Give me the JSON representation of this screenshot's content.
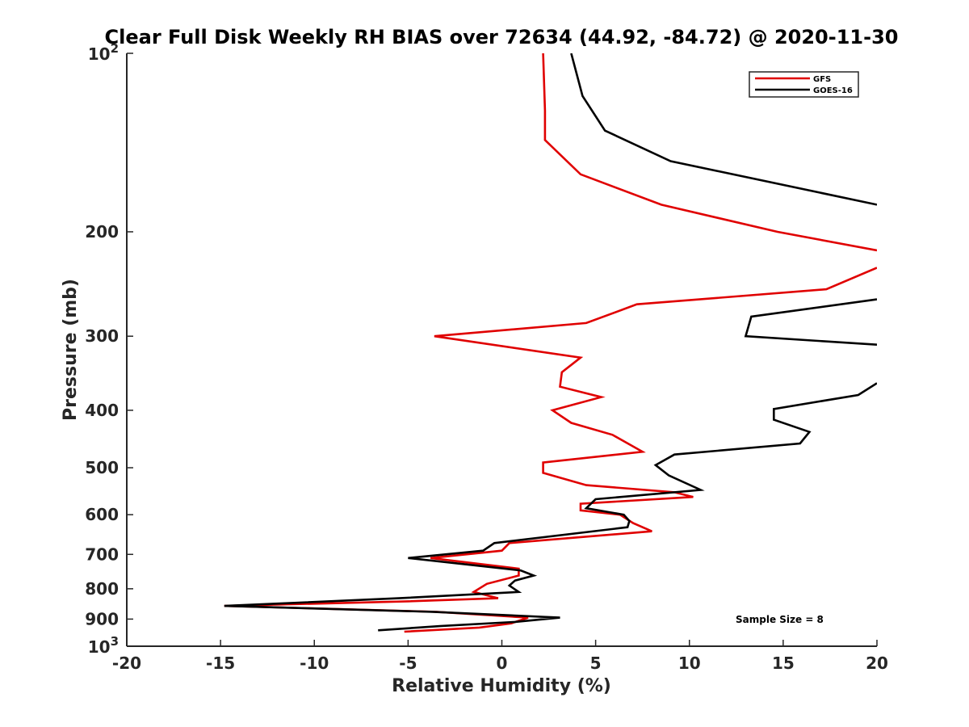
{
  "chart_data": {
    "type": "line",
    "title": "Clear Full Disk Weekly RH BIAS over 72634 (44.92, -84.72) @ 2020-11-30",
    "xlabel": "Relative Humidity (%)",
    "ylabel": "Pressure (mb)",
    "xlim": [
      -20,
      20
    ],
    "ylim": [
      100,
      1000
    ],
    "yscale": "log",
    "y_reversed": true,
    "grid": false,
    "legend_position": "top-right",
    "x_ticks": [
      -20,
      -15,
      -10,
      -5,
      0,
      5,
      10,
      15,
      20
    ],
    "x_tick_labels": [
      "-20",
      "-15",
      "-10",
      "-5",
      "0",
      "5",
      "10",
      "15",
      "20"
    ],
    "y_ticks": [
      200,
      300,
      400,
      500,
      600,
      700,
      800,
      900
    ],
    "y_tick_labels": [
      "200",
      "300",
      "400",
      "500",
      "600",
      "700",
      "800",
      "900"
    ],
    "y_end_ticks": [
      {
        "value": 100,
        "base": "10",
        "exp": "2"
      },
      {
        "value": 1000,
        "base": "10",
        "exp": "3"
      }
    ],
    "series": [
      {
        "name": "GFS",
        "color": "#e00000",
        "points": [
          [
            2.2,
            100
          ],
          [
            2.3,
            125
          ],
          [
            2.3,
            140
          ],
          [
            4.2,
            160
          ],
          [
            8.5,
            180
          ],
          [
            14.7,
            200
          ],
          [
            20,
            215
          ],
          [
            null,
            null
          ],
          [
            20,
            230
          ],
          [
            17.3,
            250
          ],
          [
            7.2,
            265
          ],
          [
            4.5,
            285
          ],
          [
            -3.6,
            300
          ],
          [
            4.2,
            326
          ],
          [
            3.2,
            345
          ],
          [
            3.1,
            365
          ],
          [
            5.3,
            380
          ],
          [
            2.7,
            400
          ],
          [
            3.7,
            420
          ],
          [
            5.9,
            440
          ],
          [
            7.5,
            470
          ],
          [
            2.2,
            490
          ],
          [
            2.2,
            510
          ],
          [
            4.5,
            535
          ],
          [
            9.2,
            550
          ],
          [
            10.2,
            560
          ],
          [
            4.2,
            575
          ],
          [
            4.2,
            590
          ],
          [
            6.3,
            600
          ],
          [
            7.0,
            620
          ],
          [
            8.0,
            640
          ],
          [
            0.4,
            670
          ],
          [
            0.0,
            690
          ],
          [
            -3.8,
            710
          ],
          [
            0.9,
            740
          ],
          [
            0.9,
            760
          ],
          [
            -0.8,
            785
          ],
          [
            -1.5,
            810
          ],
          [
            -0.2,
            830
          ],
          [
            -5.0,
            840
          ],
          [
            -14.8,
            855
          ],
          [
            -3.5,
            875
          ],
          [
            1.4,
            895
          ],
          [
            0.5,
            915
          ],
          [
            -1.2,
            930
          ],
          [
            -5.2,
            945
          ]
        ]
      },
      {
        "name": "GOES-16",
        "color": "#000000",
        "points": [
          [
            3.7,
            100
          ],
          [
            4.3,
            118
          ],
          [
            5.5,
            135
          ],
          [
            9.0,
            152
          ],
          [
            20,
            180
          ],
          [
            null,
            null
          ],
          [
            20,
            260
          ],
          [
            13.3,
            278
          ],
          [
            13.0,
            300
          ],
          [
            20,
            310
          ],
          [
            null,
            null
          ],
          [
            20,
            360
          ],
          [
            19.0,
            377
          ],
          [
            14.5,
            398
          ],
          [
            14.5,
            415
          ],
          [
            16.4,
            435
          ],
          [
            15.9,
            455
          ],
          [
            9.2,
            475
          ],
          [
            8.2,
            495
          ],
          [
            8.9,
            515
          ],
          [
            10.6,
            545
          ],
          [
            5.0,
            565
          ],
          [
            4.5,
            585
          ],
          [
            6.5,
            600
          ],
          [
            6.8,
            615
          ],
          [
            6.7,
            630
          ],
          [
            -0.4,
            670
          ],
          [
            -1.0,
            690
          ],
          [
            -5.0,
            710
          ],
          [
            1.0,
            745
          ],
          [
            1.7,
            760
          ],
          [
            0.7,
            775
          ],
          [
            0.4,
            790
          ],
          [
            0.9,
            810
          ],
          [
            -5.5,
            830
          ],
          [
            -14.8,
            855
          ],
          [
            -3.7,
            875
          ],
          [
            3.1,
            895
          ],
          [
            0.7,
            910
          ],
          [
            -3.3,
            925
          ],
          [
            -6.6,
            940
          ]
        ]
      }
    ],
    "annotations": [
      {
        "text": "Sample Size = 8",
        "x": 15,
        "y": 900
      }
    ]
  },
  "legend": {
    "entries": [
      {
        "label": "GFS",
        "color": "#e00000"
      },
      {
        "label": "GOES-16",
        "color": "#000000"
      }
    ]
  }
}
